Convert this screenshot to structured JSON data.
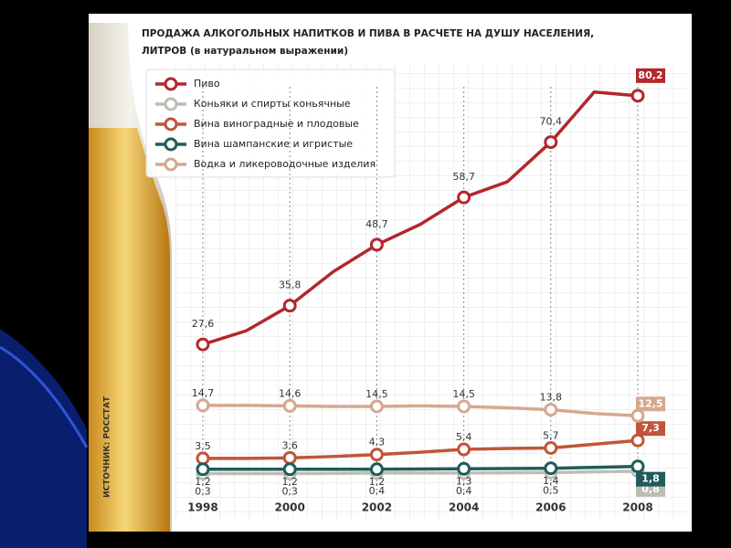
{
  "chart_data": {
    "type": "line",
    "title": "ПРОДАЖА АЛКОГОЛЬНЫХ НАПИТКОВ И ПИВА В РАСЧЕТЕ НА ДУШУ НАСЕЛЕНИЯ,",
    "subtitle": "ЛИТРОВ (в натуральном выражении)",
    "source": "ИСТОЧНИК: РОССТАТ",
    "x": [
      1998,
      1999,
      2000,
      2001,
      2002,
      2003,
      2004,
      2005,
      2006,
      2007,
      2008
    ],
    "xlim": [
      1998,
      2008
    ],
    "xticks": [
      1998,
      2000,
      2002,
      2004,
      2006,
      2008
    ],
    "ylim": [
      0,
      85
    ],
    "series": [
      {
        "name": "Пиво",
        "color": "#b3272d",
        "values": [
          27.6,
          30.5,
          35.8,
          43,
          48.7,
          53,
          58.7,
          62,
          70.4,
          81,
          80.2
        ],
        "value_labels": [
          "27,6",
          null,
          "35,8",
          null,
          "48,7",
          null,
          "58,7",
          null,
          "70,4",
          null,
          "80,2"
        ]
      },
      {
        "name": "Коньяки и спирты коньячные",
        "color": "#bdbdb5",
        "values": [
          0.3,
          0.3,
          0.3,
          0.35,
          0.4,
          0.4,
          0.4,
          0.45,
          0.5,
          0.65,
          0.8
        ],
        "value_labels": [
          "0,3",
          null,
          "0,3",
          null,
          "0,4",
          null,
          "0,4",
          null,
          "0,5",
          null,
          "0,8"
        ]
      },
      {
        "name": "Вина виноградные и плодовые",
        "color": "#c0553a",
        "values": [
          3.5,
          3.5,
          3.6,
          3.9,
          4.3,
          4.8,
          5.4,
          5.6,
          5.7,
          6.5,
          7.3
        ],
        "value_labels": [
          "3,5",
          null,
          "3,6",
          null,
          "4,3",
          null,
          "5,4",
          null,
          "5,7",
          null,
          "7,3"
        ]
      },
      {
        "name": "Вина шампанские и игристые",
        "color": "#1f5c5a",
        "values": [
          1.2,
          1.2,
          1.2,
          1.2,
          1.2,
          1.25,
          1.3,
          1.35,
          1.4,
          1.6,
          1.8
        ],
        "value_labels": [
          "1,2",
          null,
          "1,2",
          null,
          "1,2",
          null,
          "1,3",
          null,
          "1,4",
          null,
          "1,8"
        ]
      },
      {
        "name": "Водка и ликероводочные изделия",
        "color": "#d6a88f",
        "values": [
          14.7,
          14.7,
          14.6,
          14.5,
          14.5,
          14.6,
          14.5,
          14.2,
          13.8,
          13.0,
          12.5
        ],
        "value_labels": [
          "14,7",
          null,
          "14,6",
          null,
          "14,5",
          null,
          "14,5",
          null,
          "13,8",
          null,
          "12,5"
        ]
      }
    ]
  }
}
